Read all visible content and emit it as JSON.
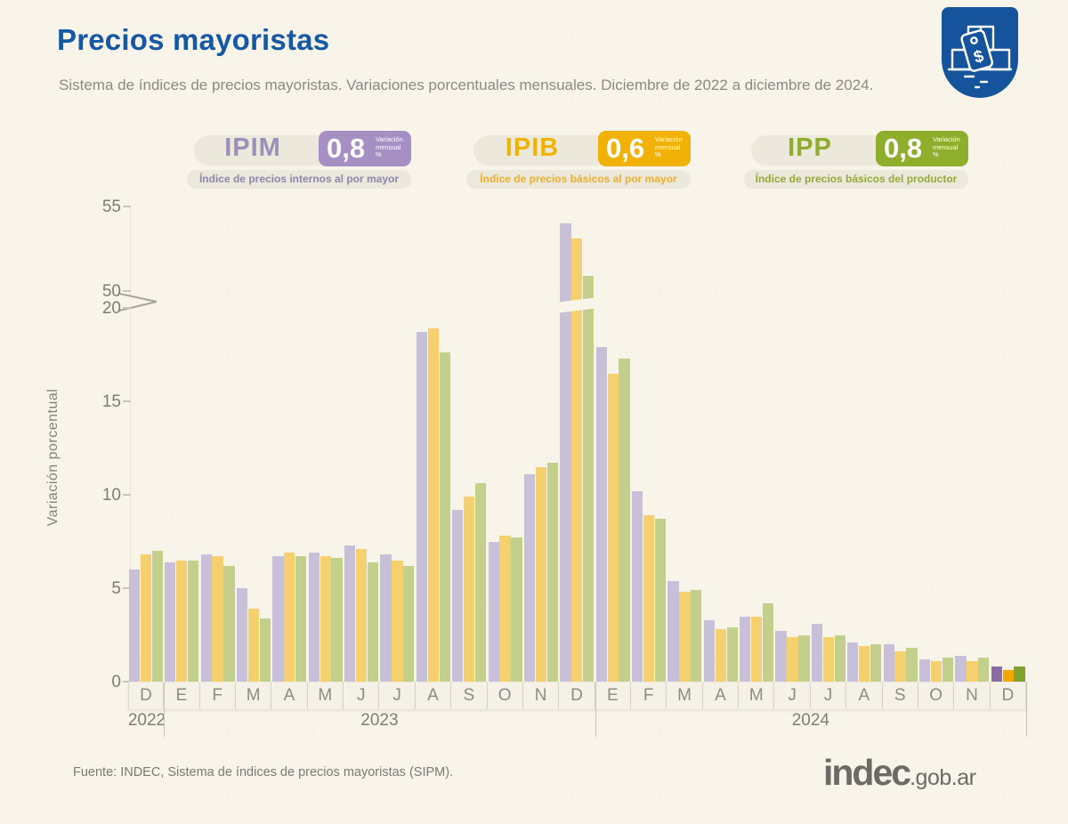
{
  "header": {
    "title": "Precios mayoristas",
    "subtitle": "Sistema de índices de precios mayoristas. Variaciones porcentuales mensuales. Diciembre de 2022 a diciembre de 2024."
  },
  "legend": [
    {
      "code": "IPIM",
      "value": "0,8",
      "unit_lines": [
        "Variación",
        "mensual",
        "%"
      ],
      "description": "Índice de precios internos al por mayor",
      "accent": "#a690c3",
      "text_color": "#9c8fb9",
      "desc_color": "#9183ae"
    },
    {
      "code": "IPIB",
      "value": "0,6",
      "unit_lines": [
        "Variación",
        "mensual",
        "%"
      ],
      "description": "Índice de precios básicos al por mayor",
      "accent": "#f2b205",
      "text_color": "#f0b400",
      "desc_color": "#ecaf2e"
    },
    {
      "code": "IPP",
      "value": "0,8",
      "unit_lines": [
        "Variación",
        "mensual",
        "%"
      ],
      "description": "Índice de precios básicos del productor",
      "accent": "#8fae2b",
      "text_color": "#8fad2d",
      "desc_color": "#93ab35"
    }
  ],
  "chart_data": {
    "type": "bar",
    "title": "Precios mayoristas",
    "ylabel": "Variación porcentual",
    "yticks": [
      0,
      5,
      10,
      15,
      20,
      50,
      55
    ],
    "axis_break": {
      "below": 20,
      "above": 50
    },
    "grid": false,
    "legend_position": "top",
    "categories": [
      "D",
      "E",
      "F",
      "M",
      "A",
      "M",
      "J",
      "J",
      "A",
      "S",
      "O",
      "N",
      "D",
      "E",
      "F",
      "M",
      "A",
      "M",
      "J",
      "J",
      "A",
      "S",
      "O",
      "N",
      "D"
    ],
    "years": [
      {
        "label": "2022",
        "months": 1
      },
      {
        "label": "2023",
        "months": 12
      },
      {
        "label": "2024",
        "months": 12
      }
    ],
    "series": [
      {
        "name": "IPIM",
        "color": "#c8bfd9",
        "highlight_color": "#8b6da0",
        "values": [
          6.0,
          6.4,
          6.8,
          5.0,
          6.7,
          6.9,
          7.3,
          6.8,
          18.7,
          9.2,
          7.5,
          11.1,
          54.0,
          17.9,
          10.2,
          5.4,
          3.3,
          3.5,
          2.7,
          3.1,
          2.1,
          2.0,
          1.2,
          1.4,
          0.8
        ]
      },
      {
        "name": "IPIB",
        "color": "#f5d06e",
        "highlight_color": "#f0a800",
        "values": [
          6.8,
          6.5,
          6.7,
          3.9,
          6.9,
          6.7,
          7.1,
          6.5,
          18.9,
          9.9,
          7.8,
          11.5,
          53.1,
          16.5,
          8.9,
          4.8,
          2.8,
          3.5,
          2.4,
          2.4,
          1.9,
          1.6,
          1.1,
          1.1,
          0.6
        ]
      },
      {
        "name": "IPP",
        "color": "#c2d08c",
        "highlight_color": "#7fa42b",
        "values": [
          7.0,
          6.5,
          6.2,
          3.4,
          6.7,
          6.6,
          6.4,
          6.2,
          17.6,
          10.6,
          7.7,
          11.7,
          50.9,
          17.3,
          8.7,
          4.9,
          2.9,
          4.2,
          2.5,
          2.5,
          2.0,
          1.8,
          1.3,
          1.3,
          0.8
        ]
      }
    ],
    "highlight_index": 24
  },
  "footer": {
    "source": "Fuente: INDEC, Sistema de índices de precios mayoristas (SIPM).",
    "brand": "indec",
    "brand_suffix": ".gob.ar"
  }
}
